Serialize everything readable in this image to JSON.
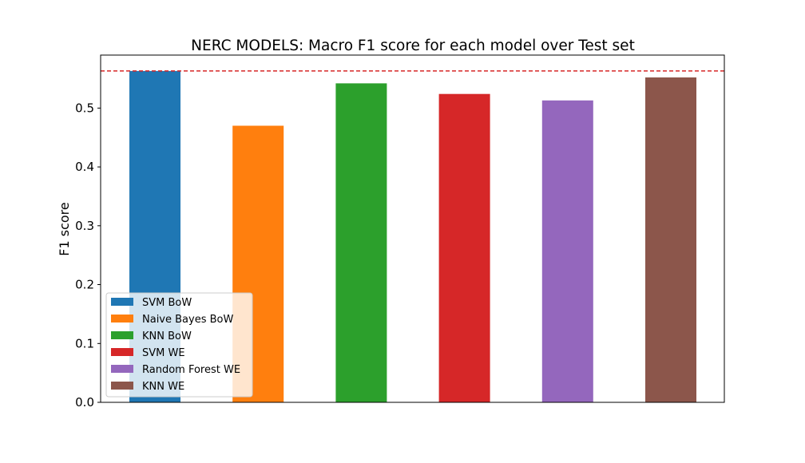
{
  "chart_data": {
    "type": "bar",
    "title": "NERC MODELS: Macro F1 score for each model over Test set",
    "xlabel": "",
    "ylabel": "F1 score",
    "ylim": [
      0,
      0.59
    ],
    "yticks": [
      "0.0",
      "0.1",
      "0.2",
      "0.3",
      "0.4",
      "0.5"
    ],
    "categories": [
      "SVM BoW",
      "Naive Bayes BoW",
      "KNN BoW",
      "SVM WE",
      "Random Forest WE",
      "KNN WE"
    ],
    "values": [
      0.563,
      0.47,
      0.542,
      0.524,
      0.513,
      0.552
    ],
    "colors": [
      "#1f77b4",
      "#ff7f0e",
      "#2ca02c",
      "#d62728",
      "#9467bd",
      "#8c564b"
    ],
    "reference_line": {
      "value": 0.563,
      "style": "dashed",
      "color": "#d62728"
    },
    "grid": false,
    "legend": {
      "placement": "lower-left",
      "entries": [
        "SVM BoW",
        "Naive Bayes BoW",
        "KNN BoW",
        "SVM WE",
        "Random Forest WE",
        "KNN WE"
      ]
    }
  }
}
